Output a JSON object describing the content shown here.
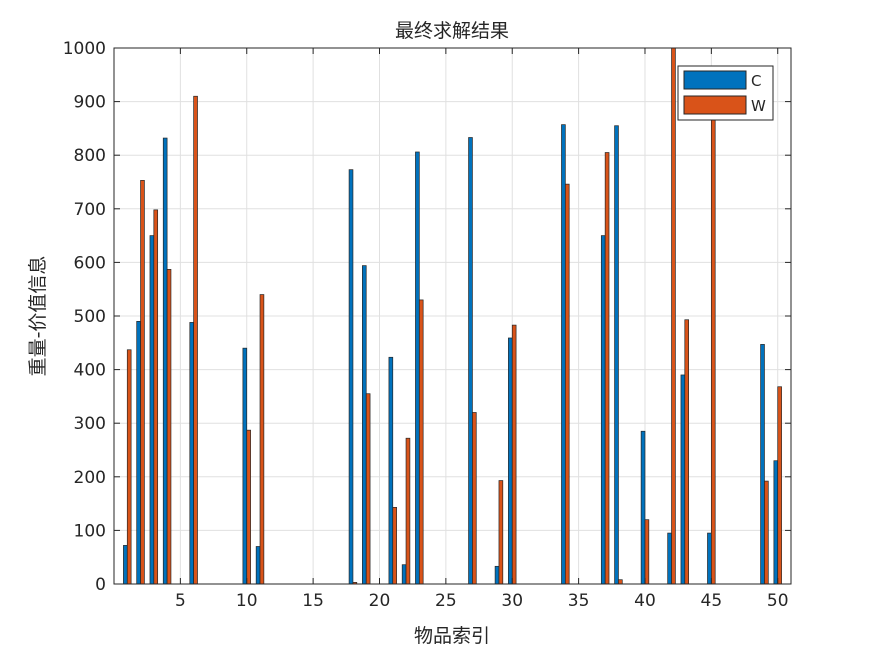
{
  "chart_data": {
    "type": "bar",
    "title": "最终求解结果",
    "xlabel": "物品索引",
    "ylabel": "重量-价值信息",
    "xlim": [
      0,
      51
    ],
    "ylim": [
      0,
      1000
    ],
    "xticks": [
      5,
      10,
      15,
      20,
      25,
      30,
      35,
      40,
      45,
      50
    ],
    "yticks": [
      0,
      100,
      200,
      300,
      400,
      500,
      600,
      700,
      800,
      900,
      1000
    ],
    "grid": true,
    "legend_position": "top-right",
    "colors": {
      "C": "#0072BD",
      "W": "#D95319"
    },
    "x": [
      1,
      2,
      3,
      4,
      5,
      6,
      7,
      8,
      9,
      10,
      11,
      12,
      13,
      14,
      15,
      16,
      17,
      18,
      19,
      20,
      21,
      22,
      23,
      24,
      25,
      26,
      27,
      28,
      29,
      30,
      31,
      32,
      33,
      34,
      35,
      36,
      37,
      38,
      39,
      40,
      41,
      42,
      43,
      44,
      45,
      46,
      47,
      48,
      49,
      50
    ],
    "series": [
      {
        "name": "C",
        "values": [
          72,
          490,
          650,
          832,
          0,
          488,
          0,
          0,
          0,
          440,
          70,
          0,
          0,
          0,
          0,
          0,
          0,
          773,
          594,
          0,
          423,
          36,
          806,
          0,
          0,
          0,
          833,
          0,
          33,
          459,
          0,
          0,
          0,
          857,
          0,
          0,
          650,
          855,
          0,
          285,
          0,
          95,
          390,
          0,
          95,
          0,
          0,
          0,
          447,
          230
        ]
      },
      {
        "name": "W",
        "values": [
          437,
          753,
          698,
          587,
          0,
          910,
          0,
          0,
          0,
          287,
          540,
          0,
          0,
          0,
          0,
          0,
          0,
          3,
          355,
          0,
          143,
          272,
          530,
          0,
          0,
          0,
          320,
          0,
          193,
          483,
          0,
          0,
          0,
          746,
          0,
          0,
          805,
          8,
          0,
          120,
          0,
          1000,
          493,
          0,
          870,
          0,
          0,
          0,
          192,
          368
        ]
      }
    ]
  }
}
